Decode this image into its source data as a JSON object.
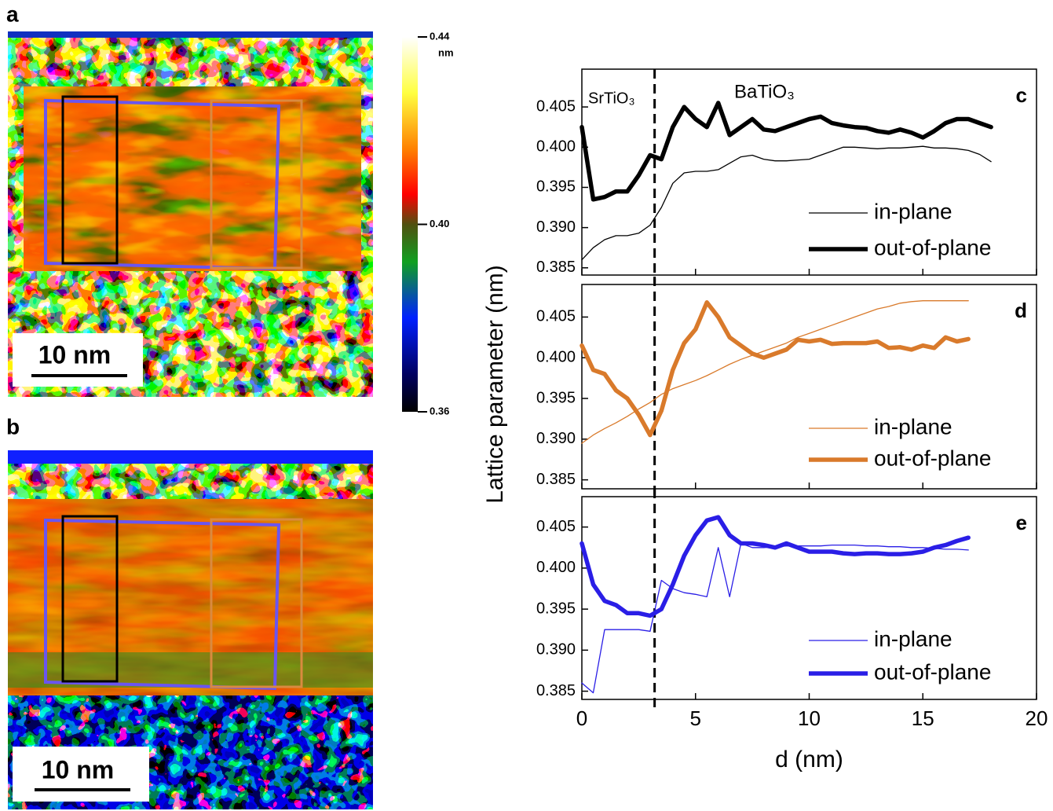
{
  "panels": {
    "a": "a",
    "b": "b",
    "scale_bar_a": "10 nm",
    "scale_bar_b": "10 nm"
  },
  "colorbar": {
    "ticks": [
      0.44,
      {
        "value": 0.4,
        "label": "0.40"
      },
      0.36
    ],
    "unit": "nm",
    "lim": [
      0.36,
      0.44
    ]
  },
  "chart_data": [
    {
      "type": "line",
      "label": "c",
      "annotations": [
        "SrTiO₃",
        "BaTiO₃"
      ],
      "interface_d": 3.2,
      "x": [
        0,
        0.5,
        1,
        1.5,
        2,
        2.5,
        3,
        3.5,
        4,
        4.5,
        5,
        5.5,
        6,
        6.5,
        7,
        7.5,
        8,
        8.5,
        9,
        9.5,
        10,
        10.5,
        11,
        11.5,
        12,
        12.5,
        13,
        13.5,
        14,
        14.5,
        15,
        15.5,
        16,
        16.5,
        17,
        17.5,
        18
      ],
      "series": [
        {
          "name": "in-plane",
          "color": "#000000",
          "values": [
            0.386,
            0.3875,
            0.3885,
            0.389,
            0.389,
            0.3893,
            0.3903,
            0.3925,
            0.3955,
            0.3968,
            0.397,
            0.397,
            0.3972,
            0.398,
            0.3988,
            0.399,
            0.3985,
            0.3983,
            0.3983,
            0.3984,
            0.3985,
            0.399,
            0.3995,
            0.4,
            0.4,
            0.3999,
            0.3998,
            0.3999,
            0.3999,
            0.4,
            0.4001,
            0.3999,
            0.3999,
            0.3998,
            0.3996,
            0.3991,
            0.3982
          ]
        },
        {
          "name": "out-of-plane",
          "color": "#000000",
          "values": [
            0.4025,
            0.3935,
            0.3938,
            0.3945,
            0.3945,
            0.3965,
            0.399,
            0.3985,
            0.4025,
            0.405,
            0.4035,
            0.4025,
            0.4055,
            0.4015,
            0.4025,
            0.4035,
            0.4022,
            0.402,
            0.4025,
            0.403,
            0.4035,
            0.4038,
            0.403,
            0.4027,
            0.4025,
            0.4024,
            0.402,
            0.4018,
            0.4022,
            0.4018,
            0.4012,
            0.402,
            0.403,
            0.4035,
            0.4035,
            0.403,
            0.4025
          ]
        }
      ],
      "xlim": [
        0,
        20
      ],
      "xticks": [
        0,
        5,
        10,
        15,
        20
      ],
      "ylim": [
        0.3841,
        0.4097
      ],
      "yticks": [
        0.385,
        {
          "value": 0.39,
          "label": "0.390"
        },
        0.395,
        {
          "value": 0.4,
          "label": "0.400"
        },
        0.405
      ],
      "legend": "lower right"
    },
    {
      "type": "line",
      "label": "d",
      "ylabel": "Lattice parameter (nm)",
      "interface_d": 3.2,
      "x": [
        0,
        0.5,
        1,
        1.5,
        2,
        2.5,
        3,
        3.5,
        4,
        4.5,
        5,
        5.5,
        6,
        6.5,
        7,
        7.5,
        8,
        8.5,
        9,
        9.5,
        10,
        10.5,
        11,
        11.5,
        12,
        12.5,
        13,
        13.5,
        14,
        14.5,
        15,
        15.5,
        16,
        16.5,
        17
      ],
      "series": [
        {
          "name": "in-plane",
          "color": "#d97a2b",
          "values": [
            0.3895,
            0.3905,
            0.3913,
            0.392,
            0.3928,
            0.3937,
            0.3945,
            0.3955,
            0.3962,
            0.3967,
            0.3972,
            0.3978,
            0.3985,
            0.3992,
            0.3998,
            0.4003,
            0.4008,
            0.4013,
            0.4018,
            0.4025,
            0.403,
            0.4035,
            0.404,
            0.4045,
            0.405,
            0.4055,
            0.406,
            0.4063,
            0.4067,
            0.4069,
            0.407,
            0.407,
            0.407,
            0.407,
            0.407
          ]
        },
        {
          "name": "out-of-plane",
          "color": "#d97a2b",
          "values": [
            0.4015,
            0.3985,
            0.398,
            0.396,
            0.395,
            0.393,
            0.3905,
            0.3935,
            0.3985,
            0.4018,
            0.4035,
            0.4068,
            0.405,
            0.4025,
            0.4015,
            0.4005,
            0.4,
            0.4005,
            0.401,
            0.4022,
            0.402,
            0.4022,
            0.4017,
            0.4018,
            0.4018,
            0.4018,
            0.402,
            0.4012,
            0.4013,
            0.401,
            0.4015,
            0.4012,
            0.4025,
            0.402,
            0.4023
          ]
        }
      ],
      "xlim": [
        0,
        20
      ],
      "xticks": [
        0,
        5,
        10,
        15,
        20
      ],
      "ylim": [
        0.3839,
        0.409
      ],
      "yticks": [
        0.385,
        {
          "value": 0.39,
          "label": "0.390"
        },
        0.395,
        {
          "value": 0.4,
          "label": "0.400"
        },
        0.405
      ],
      "legend": "lower right"
    },
    {
      "type": "line",
      "label": "e",
      "xlabel": "d (nm)",
      "interface_d": 3.2,
      "x": [
        0,
        0.5,
        1,
        1.5,
        2,
        2.5,
        3,
        3.5,
        4,
        4.5,
        5,
        5.5,
        6,
        6.5,
        7,
        7.5,
        8,
        8.5,
        9,
        9.5,
        10,
        10.5,
        11,
        11.5,
        12,
        12.5,
        13,
        13.5,
        14,
        14.5,
        15,
        15.5,
        16,
        16.5,
        17
      ],
      "series": [
        {
          "name": "in-plane",
          "color": "#2a1ee6",
          "values": [
            0.386,
            0.3848,
            0.3925,
            0.3925,
            0.3925,
            0.3925,
            0.3923,
            0.3985,
            0.3975,
            0.397,
            0.3968,
            0.3965,
            0.4025,
            0.3965,
            0.403,
            0.4025,
            0.4025,
            0.4026,
            0.4027,
            0.4027,
            0.4027,
            0.4027,
            0.4028,
            0.4028,
            0.4028,
            0.4027,
            0.4027,
            0.4026,
            0.4026,
            0.4025,
            0.4025,
            0.4024,
            0.4023,
            0.4023,
            0.4022
          ]
        },
        {
          "name": "out-of-plane",
          "color": "#2a1ee6",
          "values": [
            0.403,
            0.398,
            0.396,
            0.3955,
            0.3945,
            0.3945,
            0.3942,
            0.395,
            0.398,
            0.4015,
            0.404,
            0.4058,
            0.4062,
            0.404,
            0.403,
            0.403,
            0.4028,
            0.4025,
            0.403,
            0.4025,
            0.402,
            0.402,
            0.402,
            0.4018,
            0.4017,
            0.4018,
            0.4018,
            0.4017,
            0.4017,
            0.4018,
            0.402,
            0.4025,
            0.4028,
            0.4033,
            0.4037
          ]
        }
      ],
      "xlim": [
        0,
        20
      ],
      "xticks": [
        0,
        5,
        10,
        15,
        20
      ],
      "ylim": [
        0.384,
        0.4087
      ],
      "yticks": [
        0.385,
        {
          "value": 0.39,
          "label": "0.390"
        },
        0.395,
        {
          "value": 0.4,
          "label": "0.400"
        },
        0.405
      ],
      "legend": "lower right"
    }
  ]
}
